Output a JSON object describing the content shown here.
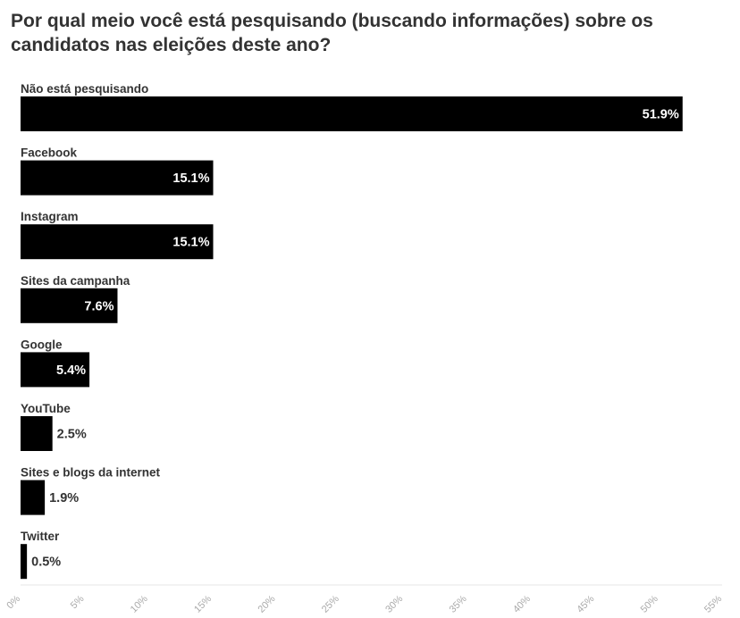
{
  "chart_data": {
    "type": "bar",
    "orientation": "horizontal",
    "title": "Por qual meio você está pesquisando (buscando informações) sobre os candidatos nas eleições deste ano?",
    "categories": [
      "Não está pesquisando",
      "Facebook",
      "Instagram",
      "Sites da campanha",
      "Google",
      "YouTube",
      "Sites e blogs da internet",
      "Twitter"
    ],
    "values": [
      51.9,
      15.1,
      15.1,
      7.6,
      5.4,
      2.5,
      1.9,
      0.5
    ],
    "value_labels": [
      "51.9%",
      "15.1%",
      "15.1%",
      "7.6%",
      "5.4%",
      "2.5%",
      "1.9%",
      "0.5%"
    ],
    "xlim": [
      0,
      55
    ],
    "xticks": [
      0,
      5,
      10,
      15,
      20,
      25,
      30,
      35,
      40,
      45,
      50,
      55
    ],
    "xtick_labels": [
      "0%",
      "5%",
      "10%",
      "15%",
      "20%",
      "25%",
      "30%",
      "35%",
      "40%",
      "45%",
      "50%",
      "55%"
    ],
    "bar_color": "#000000",
    "grid": false,
    "legend": "none"
  }
}
